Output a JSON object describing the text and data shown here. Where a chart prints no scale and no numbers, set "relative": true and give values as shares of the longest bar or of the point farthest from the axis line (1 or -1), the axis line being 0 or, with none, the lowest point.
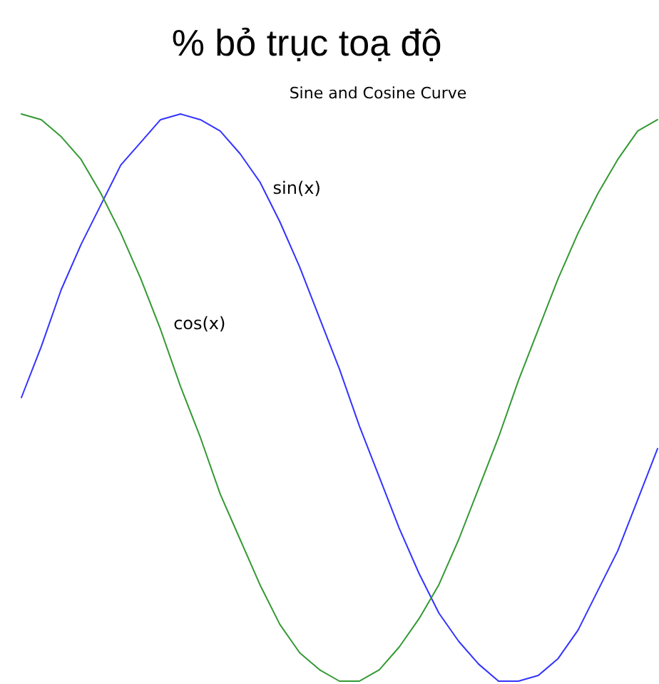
{
  "chart_data": {
    "type": "line",
    "title": "% bỏ trục toạ độ",
    "subtitle": "Sine and Cosine Curve",
    "relative": true,
    "categories": [
      null,
      null,
      null,
      null,
      null,
      null,
      null,
      null,
      null,
      null,
      null,
      null,
      null,
      null,
      null,
      null,
      null,
      null,
      null,
      null,
      null,
      null,
      null,
      null,
      null,
      null,
      null,
      null,
      null,
      null,
      null,
      null,
      null
    ],
    "series": [
      {
        "name": "sin(x)",
        "color": "#3333ff",
        "values": [
          0.5,
          0.59,
          0.69,
          0.77,
          0.84,
          0.91,
          0.95,
          0.99,
          1,
          0.99,
          0.97,
          0.93,
          0.88,
          0.81,
          0.73,
          0.64,
          0.55,
          0.45,
          0.36,
          0.27,
          0.19,
          0.12,
          0.07,
          0.03,
          0.0,
          0.0,
          0.01,
          0.04,
          0.09,
          0.16,
          0.23,
          0.32,
          0.41
        ]
      },
      {
        "name": "cos(x)",
        "color": "#339933",
        "values": [
          1,
          0.99,
          0.96,
          0.92,
          0.86,
          0.79,
          0.71,
          0.62,
          0.52,
          0.43,
          0.33,
          0.25,
          0.17,
          0.1,
          0.05,
          0.02,
          0.0,
          0.0,
          0.02,
          0.06,
          0.11,
          0.17,
          0.25,
          0.34,
          0.43,
          0.53,
          0.62,
          0.71,
          0.79,
          0.86,
          0.92,
          0.97,
          0.99
        ]
      }
    ]
  }
}
